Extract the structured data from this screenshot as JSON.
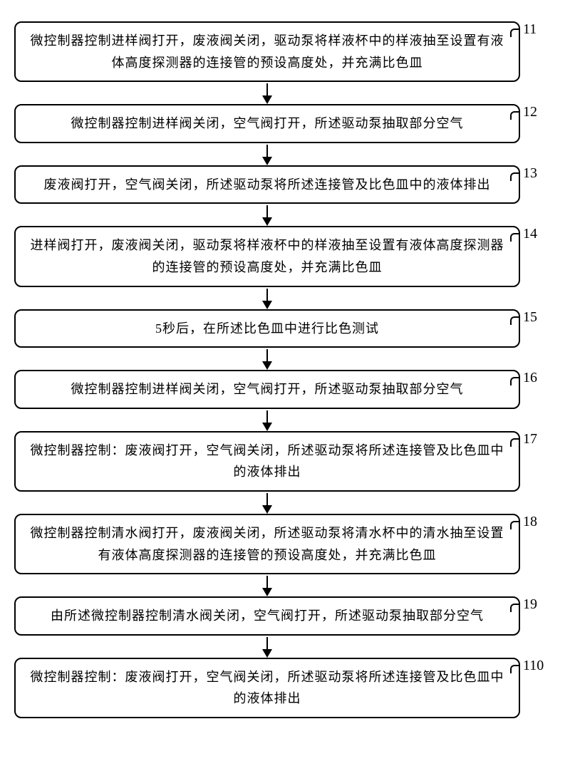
{
  "flowchart": {
    "type": "flowchart",
    "background_color": "#ffffff",
    "box_border_color": "#000000",
    "box_border_width": 2,
    "box_border_radius": 10,
    "text_color": "#000000",
    "font_family": "SimSun",
    "text_fontsize": 18,
    "label_fontsize": 20,
    "arrow_color": "#000000",
    "arrow_line_height": 18,
    "arrow_head_size": 12,
    "steps": [
      {
        "id": "11",
        "text": "微控制器控制进样阀打开，废液阀关闭，驱动泵将样液杯中的样液抽至设置有液体高度探测器的连接管的预设高度处，并充满比色皿"
      },
      {
        "id": "12",
        "text": "微控制器控制进样阀关闭，空气阀打开，所述驱动泵抽取部分空气"
      },
      {
        "id": "13",
        "text": "废液阀打开，空气阀关闭，所述驱动泵将所述连接管及比色皿中的液体排出"
      },
      {
        "id": "14",
        "text": "进样阀打开，废液阀关闭，驱动泵将样液杯中的样液抽至设置有液体高度探测器的连接管的预设高度处，并充满比色皿"
      },
      {
        "id": "15",
        "text": "5秒后，在所述比色皿中进行比色测试"
      },
      {
        "id": "16",
        "text": "微控制器控制进样阀关闭，空气阀打开，所述驱动泵抽取部分空气"
      },
      {
        "id": "17",
        "text": "微控制器控制：废液阀打开，空气阀关闭，所述驱动泵将所述连接管及比色皿中的液体排出"
      },
      {
        "id": "18",
        "text": "微控制器控制清水阀打开，废液阀关闭，所述驱动泵将清水杯中的清水抽至设置有液体高度探测器的连接管的预设高度处，并充满比色皿"
      },
      {
        "id": "19",
        "text": "由所述微控制器控制清水阀关闭，空气阀打开，所述驱动泵抽取部分空气"
      },
      {
        "id": "110",
        "text": "微控制器控制：废液阀打开，空气阀关闭，所述驱动泵将所述连接管及比色皿中的液体排出"
      }
    ]
  }
}
